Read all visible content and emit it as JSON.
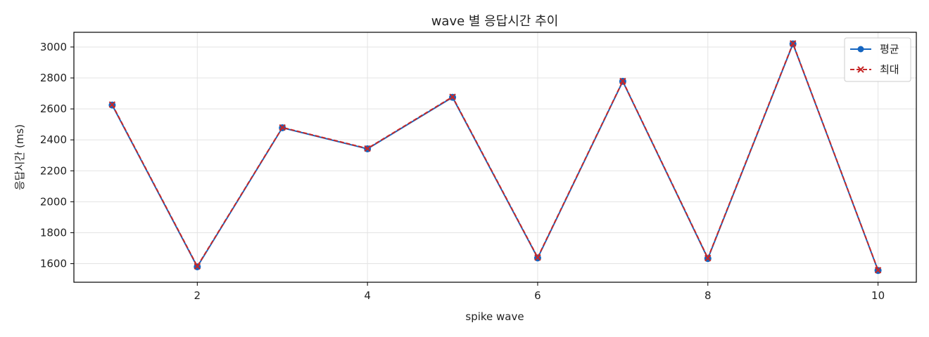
{
  "chart_data": {
    "type": "line",
    "title": "wave 별 응답시간 추이",
    "xlabel": "spike wave",
    "ylabel": "응답시간 (ms)",
    "x": [
      1,
      2,
      3,
      4,
      5,
      6,
      7,
      8,
      9,
      10
    ],
    "xlim": [
      0.55,
      10.45
    ],
    "ylim": [
      1480,
      3095
    ],
    "xticks": [
      2,
      4,
      6,
      8,
      10
    ],
    "yticks": [
      1600,
      1800,
      2000,
      2200,
      2400,
      2600,
      2800,
      3000
    ],
    "grid": true,
    "legend_position": "top-right",
    "series": [
      {
        "name": "평균",
        "color": "#1565c0",
        "marker": "circle",
        "line_style": "solid",
        "values": [
          2625,
          1580,
          2478,
          2342,
          2675,
          1637,
          2778,
          1633,
          3020,
          1556
        ]
      },
      {
        "name": "최대",
        "color": "#c62828",
        "marker": "x",
        "line_style": "dashed",
        "values": [
          2628,
          1583,
          2480,
          2344,
          2678,
          1640,
          2780,
          1636,
          3023,
          1558
        ]
      }
    ]
  }
}
